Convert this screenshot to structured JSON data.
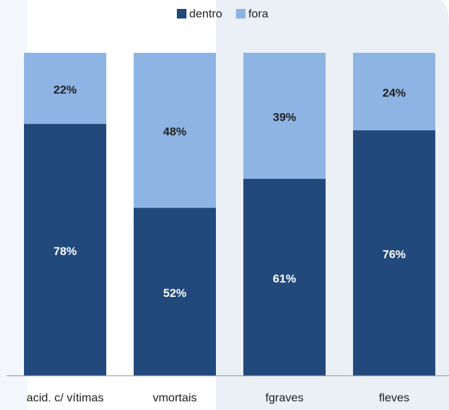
{
  "chart_data": {
    "type": "stacked_bar",
    "categories": [
      "acid. c/ vítimas",
      "vmortais",
      "fgraves",
      "fleves"
    ],
    "series": [
      {
        "name": "dentro",
        "color": "#21497c",
        "values": [
          78,
          52,
          61,
          76
        ],
        "value_labels": [
          "78%",
          "52%",
          "61%",
          "76%"
        ]
      },
      {
        "name": "fora",
        "color": "#8eb4e3",
        "values": [
          22,
          48,
          39,
          24
        ],
        "value_labels": [
          "22%",
          "48%",
          "39%",
          "24%"
        ]
      }
    ],
    "ylim": [
      0,
      100
    ],
    "legend": "top"
  }
}
